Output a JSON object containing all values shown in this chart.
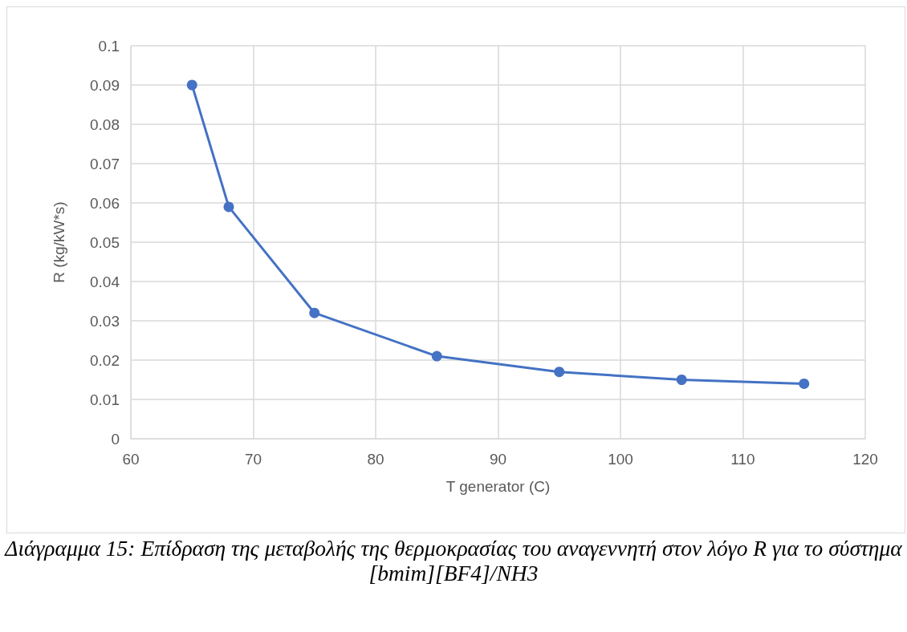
{
  "chart_data": {
    "type": "line",
    "xlabel": "T generator (C)",
    "ylabel": "R (kg/kW*s)",
    "annotations": [
      "Διάγραμμα 15: Επίδραση της μεταβολής της θερμοκρασίας του αναγεννητή στον λόγο R για το σύστημα [bmim][BF4]/NH3"
    ],
    "x": [
      65,
      68,
      75,
      85,
      95,
      105,
      115
    ],
    "series": [
      {
        "color": "#4472c4",
        "values": [
          0.09,
          0.059,
          0.032,
          0.021,
          0.017,
          0.015,
          0.014
        ]
      }
    ],
    "xlim": [
      60,
      120
    ],
    "xticks": [
      60,
      70,
      80,
      90,
      100,
      110,
      120
    ],
    "ylim": [
      0,
      0.1
    ],
    "yticks": [
      0,
      0.01,
      0.02,
      0.03,
      0.04,
      0.05,
      0.06,
      0.07,
      0.08,
      0.09,
      0.1
    ],
    "grid": true,
    "marker": "circle",
    "line_style": "solid"
  }
}
